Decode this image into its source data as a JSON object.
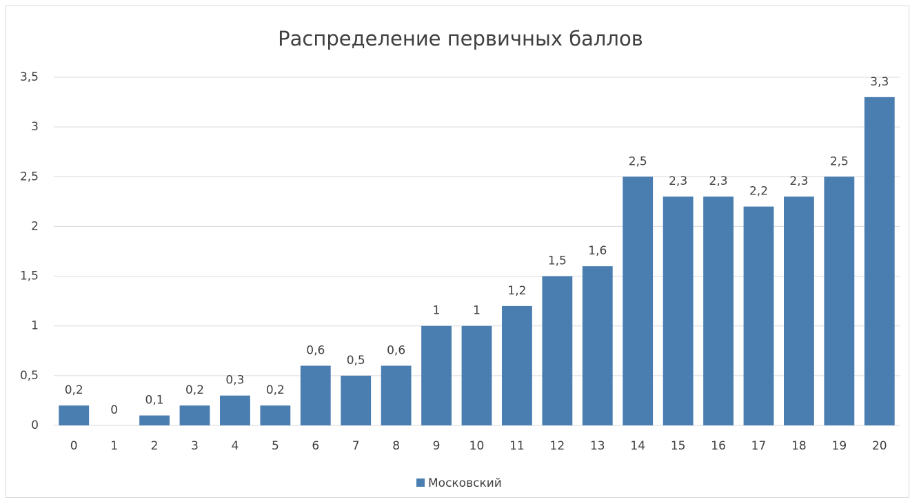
{
  "chart_data": {
    "type": "bar",
    "title": "Распределение первичных баллов",
    "categories": [
      "0",
      "1",
      "2",
      "3",
      "4",
      "5",
      "6",
      "7",
      "8",
      "9",
      "10",
      "11",
      "12",
      "13",
      "14",
      "15",
      "16",
      "17",
      "18",
      "19",
      "20"
    ],
    "series": [
      {
        "name": "Московский",
        "color": "#4a7eb0",
        "values": [
          0.2,
          0,
          0.1,
          0.2,
          0.3,
          0.2,
          0.6,
          0.5,
          0.6,
          1,
          1,
          1.2,
          1.5,
          1.6,
          2.5,
          2.3,
          2.3,
          2.2,
          2.3,
          2.5,
          3.3
        ],
        "value_labels": [
          "0,2",
          "0",
          "0,1",
          "0,2",
          "0,3",
          "0,2",
          "0,6",
          "0,5",
          "0,6",
          "1",
          "1",
          "1,2",
          "1,5",
          "1,6",
          "2,5",
          "2,3",
          "2,3",
          "2,2",
          "2,3",
          "2,5",
          "3,3"
        ]
      }
    ],
    "ylim": [
      0,
      3.5
    ],
    "yticks": [
      0,
      {
        "value": 0.5,
        "label": "0,5"
      },
      1,
      {
        "value": 1.5,
        "label": "1,5"
      },
      2,
      {
        "value": 2.5,
        "label": "2,5"
      },
      3,
      {
        "value": 3.5,
        "label": "3,5"
      }
    ],
    "grid": true,
    "legend": "bottom"
  }
}
